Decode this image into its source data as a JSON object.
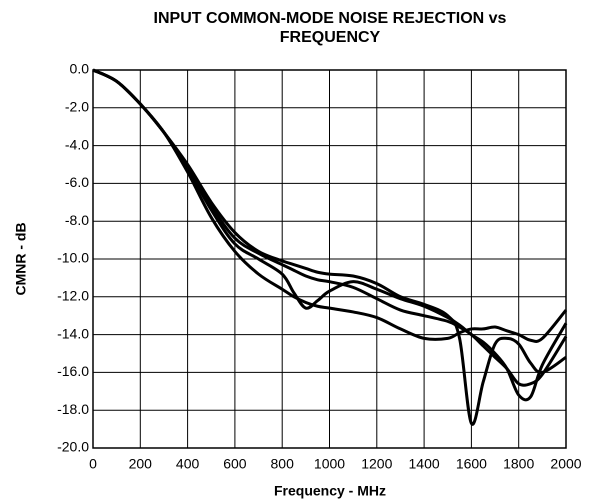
{
  "chart_data": {
    "type": "line",
    "title": [
      "INPUT COMMON-MODE NOISE REJECTION vs",
      "FREQUENCY"
    ],
    "xlabel": "Frequency - MHz",
    "ylabel": "CMNR - dB",
    "x": [
      0,
      100,
      200,
      300,
      400,
      500,
      600,
      700,
      800,
      850,
      900,
      950,
      1000,
      1100,
      1200,
      1300,
      1400,
      1500,
      1550,
      1600,
      1650,
      1700,
      1750,
      1800,
      1850,
      1900,
      2000
    ],
    "series": [
      {
        "color": "#000000",
        "values": [
          0,
          -0.6,
          -1.8,
          -3.3,
          -5.0,
          -7.0,
          -8.6,
          -9.6,
          -10.1,
          -10.3,
          -10.5,
          -10.7,
          -10.8,
          -10.9,
          -11.3,
          -12.0,
          -12.4,
          -13.0,
          -14.2,
          -18.7,
          -16.5,
          -14.5,
          -14.2,
          -14.5,
          -15.5,
          -16.0,
          -15.2
        ]
      },
      {
        "color": "#000000",
        "values": [
          0,
          -0.6,
          -1.8,
          -3.3,
          -5.2,
          -7.4,
          -9.2,
          -10.0,
          -10.8,
          -11.8,
          -12.6,
          -12.2,
          -11.7,
          -11.2,
          -11.6,
          -12.1,
          -12.5,
          -13.1,
          -13.5,
          -14.0,
          -14.4,
          -15.0,
          -15.8,
          -17.2,
          -17.3,
          -15.6,
          -13.4
        ]
      },
      {
        "color": "#000000",
        "values": [
          0,
          -0.6,
          -1.8,
          -3.3,
          -5.4,
          -7.8,
          -9.6,
          -10.8,
          -11.6,
          -12.0,
          -12.3,
          -12.5,
          -12.6,
          -12.8,
          -13.1,
          -13.7,
          -14.2,
          -14.2,
          -13.9,
          -13.7,
          -13.7,
          -13.6,
          -13.8,
          -14.0,
          -14.3,
          -14.2,
          -12.7
        ]
      },
      {
        "color": "#000000",
        "values": [
          0,
          -0.6,
          -1.8,
          -3.3,
          -5.1,
          -7.2,
          -8.9,
          -9.7,
          -10.3,
          -10.6,
          -10.9,
          -11.1,
          -11.2,
          -11.5,
          -12.1,
          -12.7,
          -13.0,
          -13.3,
          -13.6,
          -14.0,
          -14.6,
          -15.2,
          -15.8,
          -16.6,
          -16.6,
          -16.1,
          -14.1
        ]
      }
    ],
    "xlim": [
      0,
      2000
    ],
    "xticks": [
      0,
      200,
      400,
      600,
      800,
      1000,
      1200,
      1400,
      1600,
      1800,
      2000
    ],
    "ylim": [
      -20,
      0
    ],
    "yticks": [
      {
        "value": 0,
        "label": "0.0"
      },
      {
        "value": -2,
        "label": "-2.0"
      },
      {
        "value": -4,
        "label": "-4.0"
      },
      {
        "value": -6,
        "label": "-6.0"
      },
      {
        "value": -8,
        "label": "-8.0"
      },
      {
        "value": -10,
        "label": "-10.0"
      },
      {
        "value": -12,
        "label": "-12.0"
      },
      {
        "value": -14,
        "label": "-14.0"
      },
      {
        "value": -16,
        "label": "-16.0"
      },
      {
        "value": -18,
        "label": "-18.0"
      },
      {
        "value": -20,
        "label": "-20.0"
      }
    ],
    "grid": true
  }
}
